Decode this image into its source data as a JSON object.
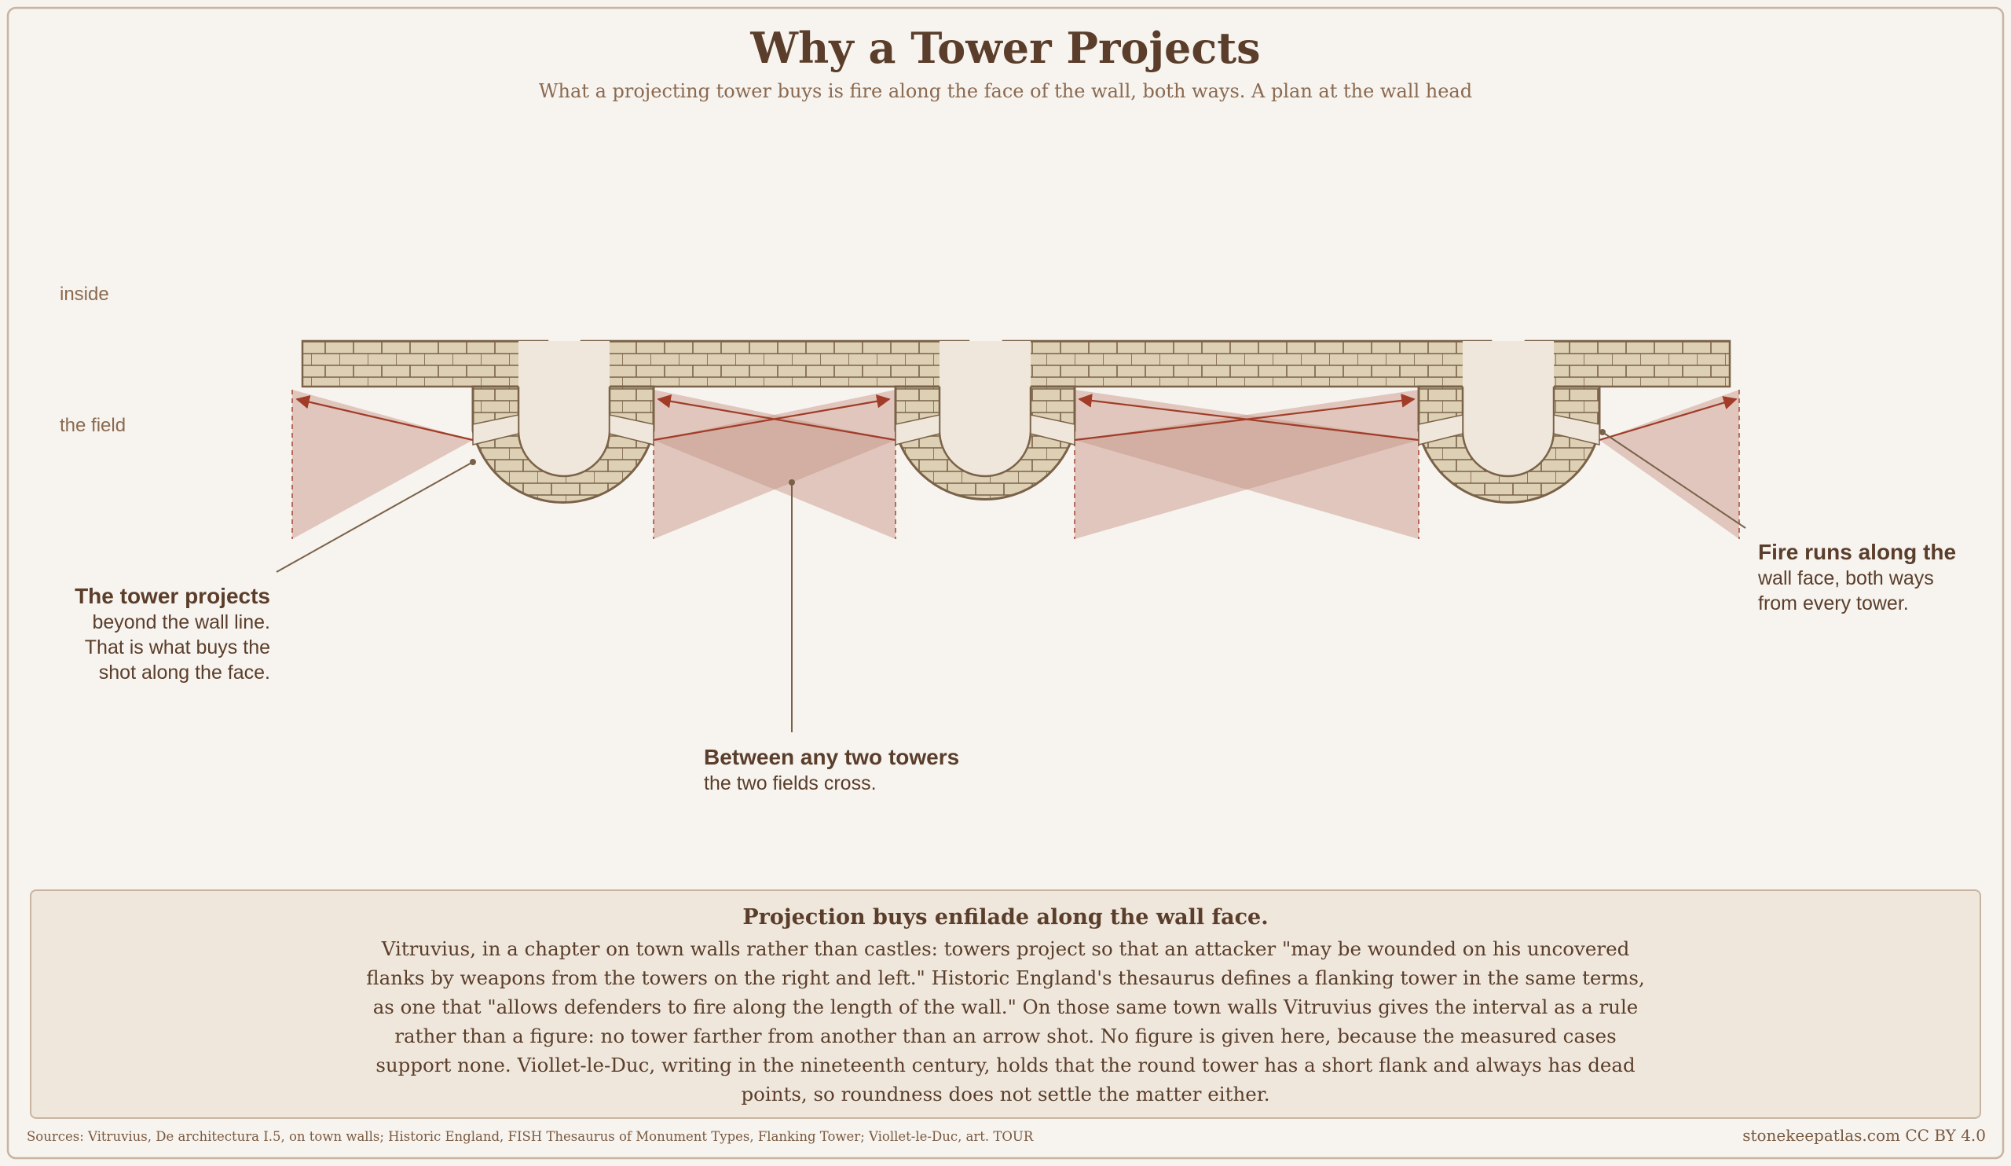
{
  "title": "Why a Tower Projects",
  "subtitle": "What a projecting tower buys is fire along the face of the wall, both ways. A plan at the wall head",
  "labels": {
    "inside": "inside",
    "field": "the field"
  },
  "callouts": {
    "tower_projects": {
      "heading": "The tower projects",
      "lines": [
        "beyond the wall line.",
        "That is what buys the",
        "shot along the face."
      ]
    },
    "between_towers": {
      "heading": "Between any two towers",
      "lines": [
        "the two fields cross."
      ]
    },
    "fire_runs": {
      "heading": "Fire runs along the",
      "lines": [
        "wall face, both ways",
        "from every tower."
      ]
    }
  },
  "note": {
    "title": "Projection buys enfilade along the wall face.",
    "body": "Vitruvius, in a chapter on town walls rather than castles: towers project so that an attacker \"may be wounded on his uncovered flanks by weapons from the towers on the right and left.\" Historic England's thesaurus defines a flanking tower in the same terms, as one that \"allows defenders to fire along the length of the wall.\" On those same town walls Vitruvius gives the interval as a rule rather than a figure: no tower farther from another than an arrow shot. No figure is given here, because the measured cases support none. Viollet-le-Duc, writing in the nineteenth century, holds that the round tower has a short flank and always has dead points, so roundness does not settle the matter either."
  },
  "footer": {
    "sources": "Sources: Vitruvius, De architectura I.5, on town walls; Historic England, FISH Thesaurus of Monument Types, Flanking Tower; Viollet-le-Duc, art. TOUR",
    "credit": "stonekeepatlas.com CC BY 4.0"
  },
  "colors": {
    "ink": "#5a3e2b",
    "stone": "#ddd0b4",
    "stone_line": "#7a6248",
    "fire_fill": "#c49080",
    "fire_line": "#a03c28"
  }
}
